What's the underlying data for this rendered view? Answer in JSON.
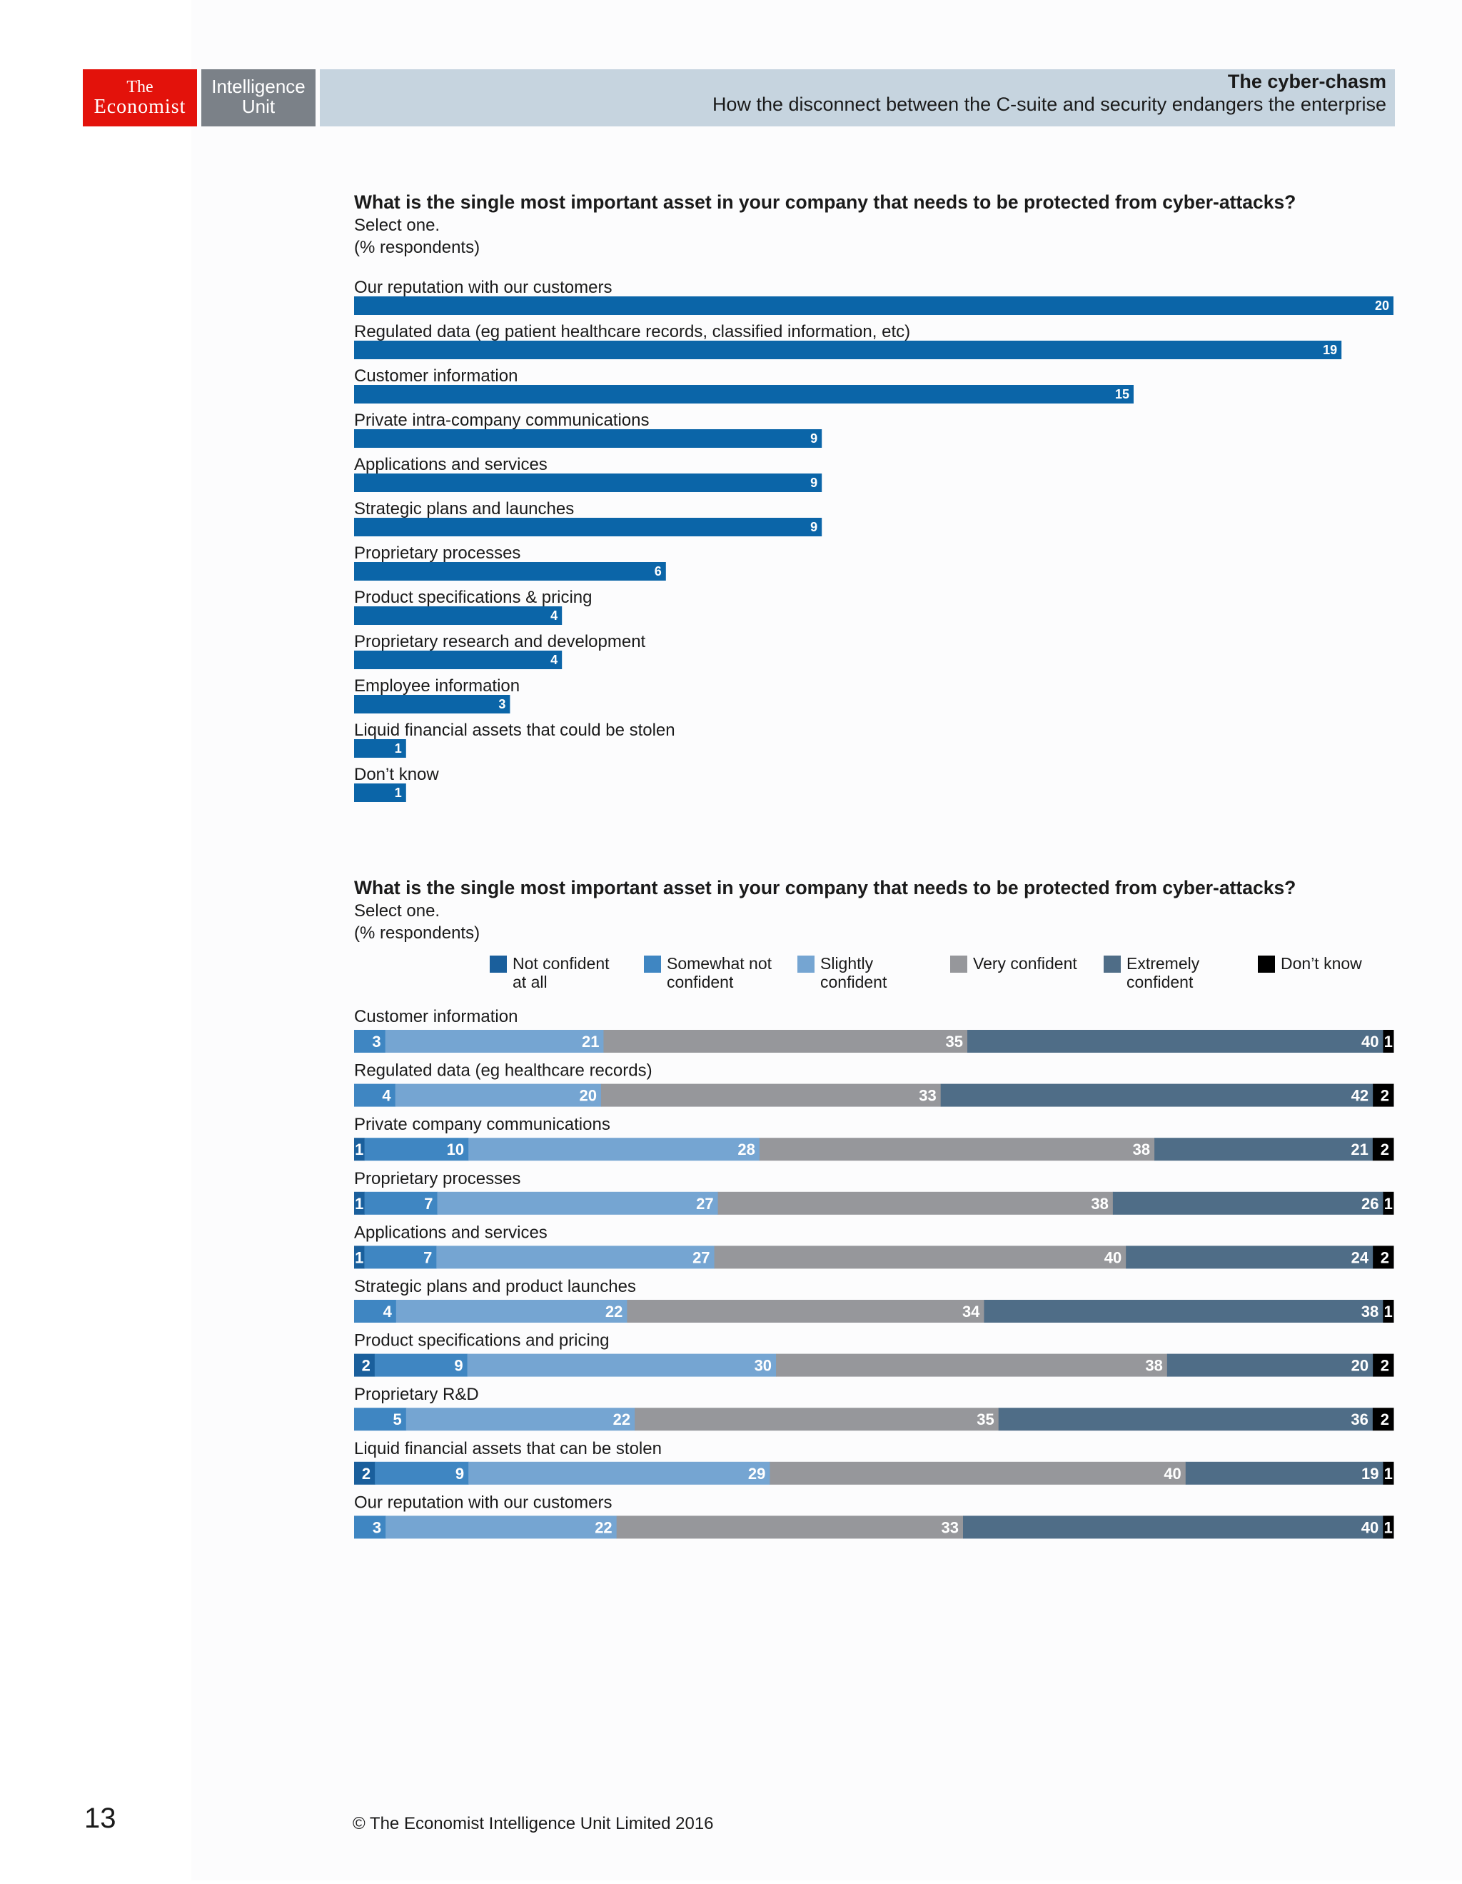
{
  "header": {
    "logo_the": "The",
    "logo_economist": "Economist",
    "logo_eiu_1": "Intelligence",
    "logo_eiu_2": "Unit",
    "report_title": "The cyber-chasm",
    "report_subtitle": "How the disconnect between the C-suite and security endangers the enterprise"
  },
  "colors": {
    "bar_blue": "#0b65a8",
    "not_confident": "#1a5f9c",
    "somewhat_not": "#3f86c2",
    "slightly": "#75a5d2",
    "very": "#96979b",
    "extremely": "#4f6d87",
    "dont_know": "#000000"
  },
  "chart_data": [
    {
      "type": "bar",
      "orientation": "horizontal",
      "title": "What is the single most important asset in your company that needs to be protected from cyber-attacks?",
      "subtitle": "Select one.",
      "unit_note": "(% respondents)",
      "categories": [
        "Our reputation with our customers",
        "Regulated data (eg patient healthcare records, classified information, etc)",
        "Customer information",
        "Private intra-company communications",
        "Applications and services",
        "Strategic plans and launches",
        "Proprietary processes",
        "Product specifications & pricing",
        "Proprietary research and development",
        "Employee information",
        "Liquid financial assets that could be stolen",
        "Don’t know"
      ],
      "values": [
        20,
        19,
        15,
        9,
        9,
        9,
        6,
        4,
        4,
        3,
        1,
        1
      ],
      "xlim": [
        0,
        20
      ]
    },
    {
      "type": "bar",
      "orientation": "horizontal",
      "stacked": true,
      "title": "What is the single most important asset in your company that needs to be protected from cyber-attacks?",
      "subtitle": "Select one.",
      "unit_note": "(% respondents)",
      "legend_position": "top",
      "series_names": [
        [
          "Not confident",
          "at all"
        ],
        [
          "Somewhat not",
          "confident"
        ],
        [
          "Slightly",
          "confident"
        ],
        [
          "Very confident"
        ],
        [
          "Extremely",
          "confident"
        ],
        [
          "Don’t know"
        ]
      ],
      "categories": [
        "Customer information",
        "Regulated data (eg healthcare records)",
        "Private company communications",
        "Proprietary processes",
        "Applications and services",
        "Strategic plans and product launches",
        "Product specifications and pricing",
        "Proprietary R&D",
        "Liquid financial assets that can be stolen",
        "Our reputation with our customers"
      ],
      "rows": [
        [
          0,
          3,
          21,
          35,
          40,
          1
        ],
        [
          0,
          4,
          20,
          33,
          42,
          2
        ],
        [
          1,
          10,
          28,
          38,
          21,
          2
        ],
        [
          1,
          7,
          27,
          38,
          26,
          1
        ],
        [
          1,
          7,
          27,
          40,
          24,
          2
        ],
        [
          0,
          4,
          22,
          34,
          38,
          1
        ],
        [
          2,
          9,
          30,
          38,
          20,
          2
        ],
        [
          0,
          5,
          22,
          35,
          36,
          2
        ],
        [
          2,
          9,
          29,
          40,
          19,
          1
        ],
        [
          0,
          3,
          22,
          33,
          40,
          1
        ]
      ]
    }
  ],
  "footer": {
    "page_number": "13",
    "copyright": "© The Economist Intelligence Unit Limited 2016"
  }
}
